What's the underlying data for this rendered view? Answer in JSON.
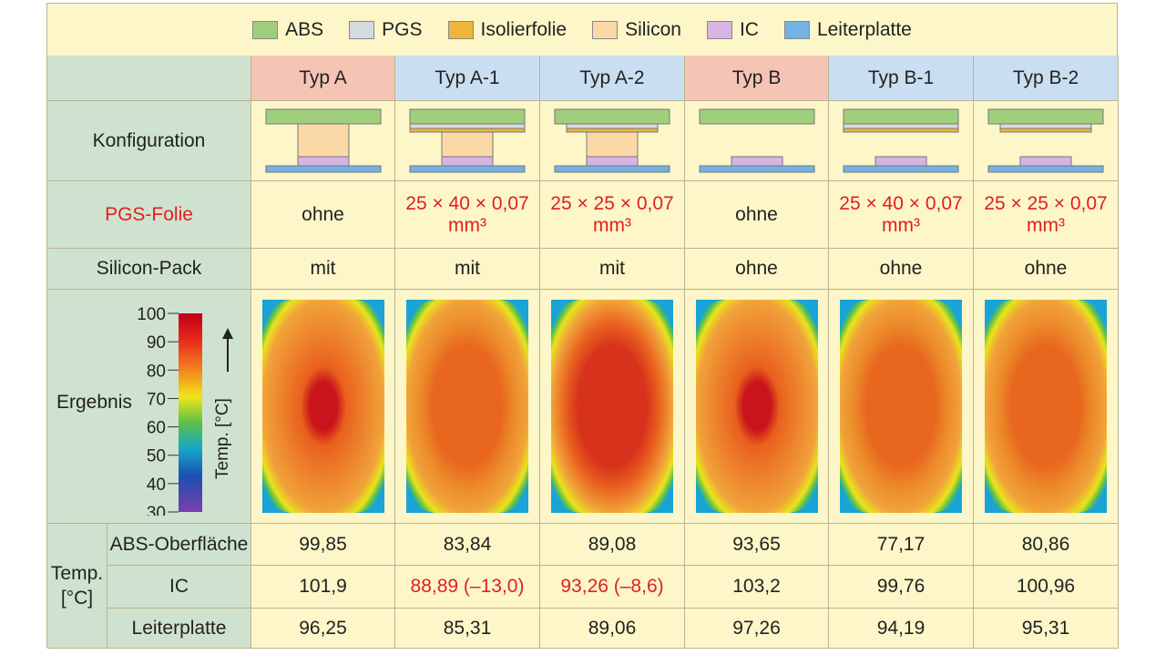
{
  "legend": [
    {
      "label": "ABS",
      "color": "#9fcf7d"
    },
    {
      "label": "PGS",
      "color": "#d4dbe0"
    },
    {
      "label": "Isolierfolie",
      "color": "#efb53a"
    },
    {
      "label": "Silicon",
      "color": "#fbd9a6"
    },
    {
      "label": "IC",
      "color": "#d8b3e3"
    },
    {
      "label": "Leiterplatte",
      "color": "#72b3e3"
    }
  ],
  "rows": {
    "konfiguration": "Konfiguration",
    "pgs_folie": "PGS-Folie",
    "silicon_pack": "Silicon-Pack",
    "ergebnis": "Ergebnis",
    "temp": "Temp.\n[°C]",
    "abs_oberflaeche": "ABS-Oberfläche",
    "ic": "IC",
    "leiterplatte": "Leiterplatte"
  },
  "colorbar": {
    "ticks": [
      "100",
      "90",
      "80",
      "70",
      "60",
      "50",
      "40",
      "30"
    ],
    "axis_label": "Temp. [°C]"
  },
  "types": [
    {
      "name": "Typ A",
      "pgs": "ohne",
      "pgs_unit": "",
      "pack": "mit",
      "abs": "99,85",
      "ic": "101,9",
      "lp": "96,25",
      "ic_red": false,
      "hdr": "a",
      "silicon": true,
      "pgs_layer": "none",
      "hot": 0.9
    },
    {
      "name": "Typ A-1",
      "pgs": "25 × 40 × 0,07",
      "pgs_unit": "mm³",
      "pack": "mit",
      "abs": "83,84",
      "ic": "88,89 (–13,0)",
      "lp": "85,31",
      "ic_red": true,
      "hdr": "b",
      "silicon": true,
      "pgs_layer": "full",
      "hot": 0.55
    },
    {
      "name": "Typ A-2",
      "pgs": "25 × 25 × 0,07",
      "pgs_unit": "mm³",
      "pack": "mit",
      "abs": "89,08",
      "ic": "93,26 (–8,6)",
      "lp": "89,06",
      "ic_red": true,
      "hdr": "b",
      "silicon": true,
      "pgs_layer": "part",
      "hot": 0.72
    },
    {
      "name": "Typ B",
      "pgs": "ohne",
      "pgs_unit": "",
      "pack": "ohne",
      "abs": "93,65",
      "ic": "103,2",
      "lp": "97,26",
      "ic_red": false,
      "hdr": "a",
      "silicon": false,
      "pgs_layer": "none",
      "hot": 0.85
    },
    {
      "name": "Typ B-1",
      "pgs": "25 × 40 × 0,07",
      "pgs_unit": "mm³",
      "pack": "ohne",
      "abs": "77,17",
      "ic": "99,76",
      "lp": "94,19",
      "ic_red": false,
      "hdr": "b",
      "silicon": false,
      "pgs_layer": "full",
      "hot": 0.4
    },
    {
      "name": "Typ B-2",
      "pgs": "25 × 25 × 0,07",
      "pgs_unit": "mm³",
      "pack": "ohne",
      "abs": "80,86",
      "ic": "100,96",
      "lp": "95,31",
      "ic_red": false,
      "hdr": "b",
      "silicon": false,
      "pgs_layer": "part",
      "hot": 0.5
    }
  ]
}
